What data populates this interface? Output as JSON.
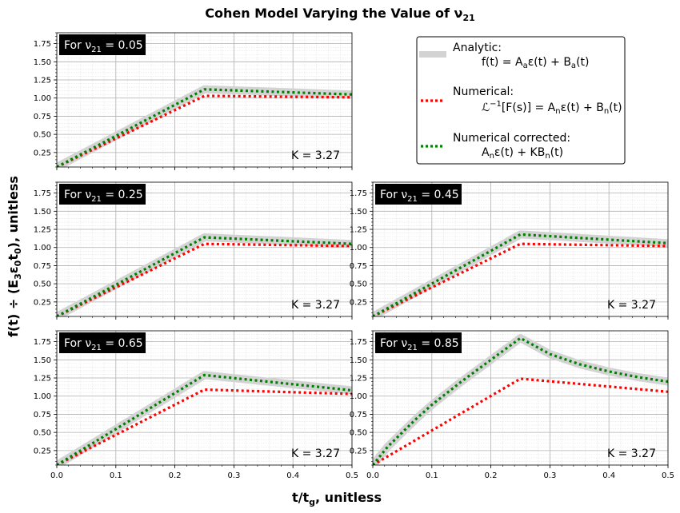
{
  "figure": {
    "title_pre": "Cohen Model Varying the Value of ν",
    "title_sub": "21",
    "ylabel_pre": "f(t) ÷ (E",
    "ylabel_sub1": "3",
    "ylabel_mid": "ε",
    "ylabel_sub2": "0",
    "ylabel_post": "t",
    "ylabel_sub3": "0",
    "ylabel_end": "), unitless",
    "xlabel_pre": "t/t",
    "xlabel_sub": "g",
    "xlabel_post": ", unitless"
  },
  "legend": {
    "items": [
      {
        "name": "Analytic:",
        "formula": "f(t) = A_aε(t) + B_a(t)",
        "color": "#d3d3d3",
        "style": "solid"
      },
      {
        "name": "Numerical:",
        "formula": "ℒ⁻¹[F(s)] = A_nε(t) + B_n(t)",
        "color": "#ff0000",
        "style": "dotted"
      },
      {
        "name": "Numerical corrected:",
        "formula": "A_nε(t) + KB_n(t)",
        "color": "#008000",
        "style": "dotted"
      }
    ]
  },
  "chart_data": [
    {
      "type": "line",
      "panel_label": "For ν21 = 0.05",
      "nu21": 0.05,
      "k_label": "K = 3.27",
      "xlim": [
        0,
        0.5
      ],
      "ylim": [
        0.05,
        1.9
      ],
      "yticks": [
        0.25,
        0.5,
        0.75,
        1.0,
        1.25,
        1.5,
        1.75
      ],
      "xticks": [
        0,
        0.1,
        0.2,
        0.3,
        0.4,
        0.5
      ],
      "show_xticklabels": false,
      "series": [
        {
          "name": "Analytic",
          "x": [
            0,
            0.25,
            0.5
          ],
          "y": [
            0.05,
            1.12,
            1.05
          ]
        },
        {
          "name": "Numerical",
          "x": [
            0,
            0.25,
            0.5
          ],
          "y": [
            0.05,
            1.03,
            1.01
          ]
        },
        {
          "name": "Numerical corrected",
          "x": [
            0,
            0.25,
            0.5
          ],
          "y": [
            0.05,
            1.12,
            1.05
          ]
        }
      ]
    },
    {
      "type": "line",
      "panel_label": "For ν21 = 0.25",
      "nu21": 0.25,
      "k_label": "K = 3.27",
      "xlim": [
        0,
        0.5
      ],
      "ylim": [
        0.05,
        1.9
      ],
      "yticks": [
        0.25,
        0.5,
        0.75,
        1.0,
        1.25,
        1.5,
        1.75
      ],
      "xticks": [
        0,
        0.1,
        0.2,
        0.3,
        0.4,
        0.5
      ],
      "show_xticklabels": false,
      "series": [
        {
          "name": "Analytic",
          "x": [
            0,
            0.25,
            0.5
          ],
          "y": [
            0.05,
            1.14,
            1.05
          ]
        },
        {
          "name": "Numerical",
          "x": [
            0,
            0.25,
            0.5
          ],
          "y": [
            0.05,
            1.05,
            1.02
          ]
        },
        {
          "name": "Numerical corrected",
          "x": [
            0,
            0.25,
            0.5
          ],
          "y": [
            0.05,
            1.14,
            1.05
          ]
        }
      ]
    },
    {
      "type": "line",
      "panel_label": "For ν21 = 0.45",
      "nu21": 0.45,
      "k_label": "K = 3.27",
      "xlim": [
        0,
        0.5
      ],
      "ylim": [
        0.05,
        1.9
      ],
      "yticks": [
        0.25,
        0.5,
        0.75,
        1.0,
        1.25,
        1.5,
        1.75
      ],
      "xticks": [
        0,
        0.1,
        0.2,
        0.3,
        0.4,
        0.5
      ],
      "show_xticklabels": false,
      "series": [
        {
          "name": "Analytic",
          "x": [
            0,
            0.25,
            0.5
          ],
          "y": [
            0.05,
            1.18,
            1.06
          ]
        },
        {
          "name": "Numerical",
          "x": [
            0,
            0.25,
            0.5
          ],
          "y": [
            0.05,
            1.05,
            1.02
          ]
        },
        {
          "name": "Numerical corrected",
          "x": [
            0,
            0.25,
            0.5
          ],
          "y": [
            0.05,
            1.18,
            1.06
          ]
        }
      ]
    },
    {
      "type": "line",
      "panel_label": "For ν21 = 0.65",
      "nu21": 0.65,
      "k_label": "K = 3.27",
      "xlim": [
        0,
        0.5
      ],
      "ylim": [
        0.05,
        1.9
      ],
      "yticks": [
        0.25,
        0.5,
        0.75,
        1.0,
        1.25,
        1.5,
        1.75
      ],
      "xticks": [
        0,
        0.1,
        0.2,
        0.3,
        0.4,
        0.5
      ],
      "show_xticklabels": true,
      "series": [
        {
          "name": "Analytic",
          "x": [
            0,
            0.25,
            0.5
          ],
          "y": [
            0.05,
            1.29,
            1.08
          ]
        },
        {
          "name": "Numerical",
          "x": [
            0,
            0.25,
            0.5
          ],
          "y": [
            0.05,
            1.09,
            1.03
          ]
        },
        {
          "name": "Numerical corrected",
          "x": [
            0,
            0.25,
            0.5
          ],
          "y": [
            0.05,
            1.29,
            1.08
          ]
        }
      ]
    },
    {
      "type": "line",
      "panel_label": "For ν21 = 0.85",
      "nu21": 0.85,
      "k_label": "K = 3.27",
      "xlim": [
        0,
        0.5
      ],
      "ylim": [
        0.05,
        1.9
      ],
      "yticks": [
        0.25,
        0.5,
        0.75,
        1.0,
        1.25,
        1.5,
        1.75
      ],
      "xticks": [
        0,
        0.1,
        0.2,
        0.3,
        0.4,
        0.5
      ],
      "show_xticklabels": true,
      "series": [
        {
          "name": "Analytic",
          "x": [
            0,
            0.025,
            0.05,
            0.075,
            0.1,
            0.15,
            0.2,
            0.25,
            0.3,
            0.35,
            0.4,
            0.45,
            0.5
          ],
          "y": [
            0.05,
            0.3,
            0.5,
            0.7,
            0.88,
            1.2,
            1.5,
            1.8,
            1.58,
            1.44,
            1.34,
            1.26,
            1.2
          ]
        },
        {
          "name": "Numerical",
          "x": [
            0,
            0.25,
            0.5
          ],
          "y": [
            0.05,
            1.24,
            1.06
          ]
        },
        {
          "name": "Numerical corrected",
          "x": [
            0,
            0.025,
            0.05,
            0.075,
            0.1,
            0.15,
            0.2,
            0.25,
            0.3,
            0.35,
            0.4,
            0.45,
            0.5
          ],
          "y": [
            0.05,
            0.3,
            0.5,
            0.7,
            0.88,
            1.2,
            1.5,
            1.8,
            1.58,
            1.44,
            1.34,
            1.26,
            1.2
          ]
        }
      ]
    }
  ]
}
